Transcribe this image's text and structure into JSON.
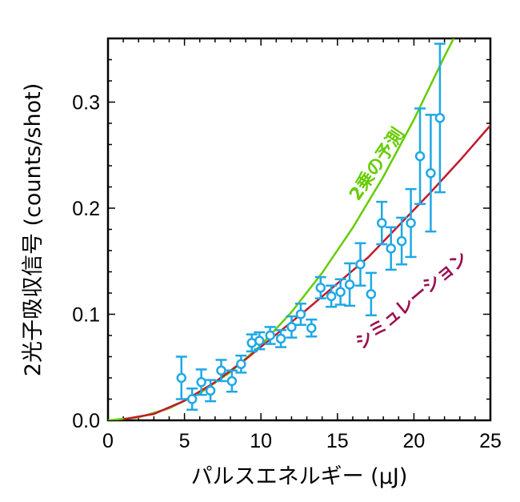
{
  "chart_data": {
    "type": "scatter",
    "xlabel": "パルスエネルギー (μJ)",
    "ylabel": "2光子吸収信号 (counts/shot)",
    "xlim": [
      0,
      25
    ],
    "ylim": [
      0,
      0.36
    ],
    "x_ticks": [
      "0",
      "5",
      "10",
      "15",
      "20",
      "25"
    ],
    "y_ticks": [
      "0.0",
      "0.1",
      "0.2",
      "0.3"
    ],
    "grid": false,
    "colors": {
      "data": "#1ea8e6",
      "quadratic": "#66cc00",
      "simulation": "#c21a2a",
      "simulation_label": "#9b1050"
    },
    "annotations": {
      "quadratic": "2乗の予測",
      "simulation": "シミュレーション"
    },
    "series": [
      {
        "kind": "points",
        "x": [
          4.8,
          5.5,
          6.1,
          6.7,
          7.4,
          8.1,
          8.7,
          9.4,
          9.9,
          10.6,
          11.3,
          12.0,
          12.6,
          13.3,
          13.9,
          14.6,
          15.2,
          15.8,
          16.5,
          17.2,
          17.9,
          18.5,
          19.2,
          19.8,
          20.4,
          21.1,
          21.7
        ],
        "y": [
          0.04,
          0.02,
          0.036,
          0.028,
          0.047,
          0.037,
          0.053,
          0.073,
          0.075,
          0.08,
          0.077,
          0.088,
          0.1,
          0.087,
          0.125,
          0.117,
          0.121,
          0.128,
          0.147,
          0.119,
          0.186,
          0.162,
          0.169,
          0.186,
          0.249,
          0.233,
          0.285
        ],
        "yerr": [
          0.02,
          0.01,
          0.012,
          0.01,
          0.01,
          0.01,
          0.008,
          0.008,
          0.008,
          0.008,
          0.008,
          0.01,
          0.01,
          0.008,
          0.01,
          0.01,
          0.012,
          0.02,
          0.02,
          0.02,
          0.02,
          0.02,
          0.022,
          0.032,
          0.045,
          0.055,
          0.07
        ]
      },
      {
        "kind": "line",
        "x": [
          0,
          2,
          4,
          6,
          8,
          10,
          12,
          14,
          16,
          18,
          20,
          22,
          22.6
        ],
        "y": [
          0,
          0.0028,
          0.0113,
          0.0255,
          0.0454,
          0.0709,
          0.1021,
          0.139,
          0.1815,
          0.2297,
          0.2835,
          0.3431,
          0.36
        ]
      },
      {
        "kind": "line",
        "x": [
          1,
          3,
          5,
          7,
          9,
          11,
          13,
          15,
          17,
          19,
          21,
          23,
          25
        ],
        "y": [
          0.001,
          0.006,
          0.0185,
          0.036,
          0.0575,
          0.081,
          0.1045,
          0.129,
          0.1535,
          0.1835,
          0.2135,
          0.245,
          0.278
        ]
      }
    ]
  }
}
